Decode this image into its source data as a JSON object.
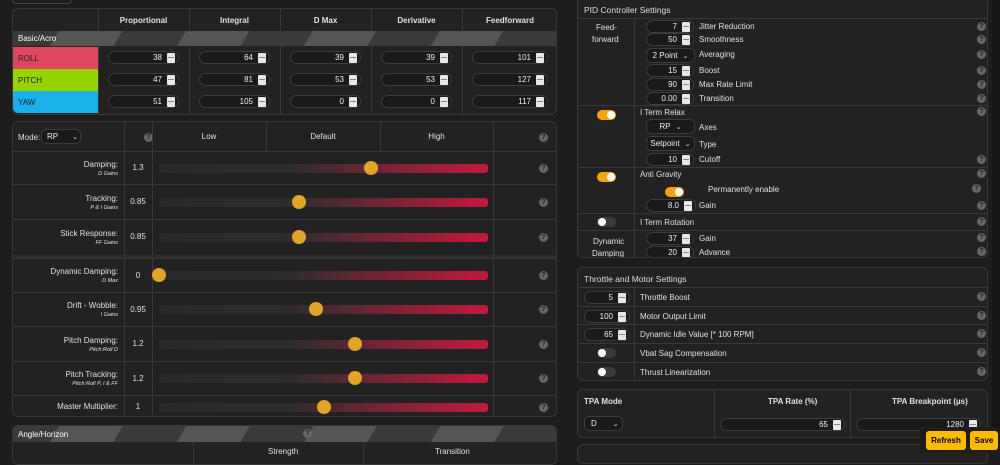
{
  "pid_table": {
    "columns": [
      "Proportional",
      "Integral",
      "D Max",
      "Derivative",
      "Feedforward"
    ],
    "section_label": "Basic/Acro",
    "rows": [
      {
        "axis": "ROLL",
        "color": "#e0465e",
        "values": [
          "38",
          "64",
          "39",
          "39",
          "101"
        ]
      },
      {
        "axis": "PITCH",
        "color": "#96d400",
        "values": [
          "47",
          "81",
          "53",
          "53",
          "127"
        ]
      },
      {
        "axis": "YAW",
        "color": "#1ab0ea",
        "values": [
          "51",
          "105",
          "0",
          "0",
          "117"
        ]
      }
    ]
  },
  "sliders": {
    "mode_label": "Mode:",
    "mode_value": "RP",
    "headers": [
      "Low",
      "Default",
      "High"
    ],
    "rows": [
      {
        "label": "Damping:",
        "sub": "D Gains",
        "value": "1.3",
        "position": 0.645
      },
      {
        "label": "Tracking:",
        "sub": "P & I Gains",
        "value": "0.85",
        "position": 0.427
      },
      {
        "label": "Stick Response:",
        "sub": "FF Gains",
        "value": "0.85",
        "position": 0.427
      },
      {
        "label": "Dynamic Damping:",
        "sub": "D Max",
        "value": "0",
        "position": 0.0
      },
      {
        "label": "Drift - Wobble:",
        "sub": "I Gains",
        "value": "0.95",
        "position": 0.476
      },
      {
        "label": "Pitch Damping:",
        "sub": "Pitch:Roll D",
        "value": "1.2",
        "position": 0.596
      },
      {
        "label": "Pitch Tracking:",
        "sub": "Pitch:Roll P, I & FF",
        "value": "1.2",
        "position": 0.596
      },
      {
        "label": "Master Multiplier:",
        "sub": "",
        "value": "1",
        "position": 0.5
      }
    ]
  },
  "angle_horizon": {
    "title": "Angle/Horizon",
    "columns": [
      "Strength",
      "Transition"
    ]
  },
  "pid_controller": {
    "title": "PID Controller Settings",
    "feedforward": {
      "label_1": "Feed-",
      "label_2": "forward",
      "jitter": {
        "value": "7",
        "label": "Jitter Reduction"
      },
      "smoothness": {
        "value": "50",
        "label": "Smoothness"
      },
      "averaging": {
        "value": "2 Point",
        "label": "Averaging"
      },
      "boost": {
        "value": "15",
        "label": "Boost"
      },
      "max_rate": {
        "value": "90",
        "label": "Max Rate Limit"
      },
      "transition": {
        "value": "0.00",
        "label": "Transition"
      }
    },
    "iterm_relax": {
      "label": "I Term Relax",
      "enabled": true,
      "axes": {
        "value": "RP",
        "label": "Axes"
      },
      "type": {
        "value": "Setpoint",
        "label": "Type"
      },
      "cutoff": {
        "value": "10",
        "label": "Cutoff"
      }
    },
    "anti_gravity": {
      "label": "Anti Gravity",
      "enabled": true,
      "permanent_label": "Permanently enable",
      "permanent": true,
      "gain": {
        "value": "8.0",
        "label": "Gain"
      }
    },
    "iterm_rotation": {
      "label": "I Term Rotation",
      "enabled": false
    },
    "dynamic_damping": {
      "label_1": "Dynamic",
      "label_2": "Damping",
      "gain": {
        "value": "37",
        "label": "Gain"
      },
      "advance": {
        "value": "20",
        "label": "Advance"
      }
    }
  },
  "throttle_motor": {
    "title": "Throttle and Motor Settings",
    "throttle_boost": {
      "value": "5",
      "label": "Throttle Boost"
    },
    "motor_output_limit": {
      "value": "100",
      "label": "Motor Output Limit"
    },
    "dynamic_idle": {
      "value": "65",
      "label": "Dynamic Idle Value [* 100 RPM]"
    },
    "vbat_sag": {
      "label": "Vbat Sag Compensation",
      "enabled": false
    },
    "thrust_lin": {
      "label": "Thrust Linearization",
      "enabled": false
    }
  },
  "tpa": {
    "mode_label": "TPA Mode",
    "mode_value": "D",
    "rate_label": "TPA Rate (%)",
    "rate_value": "65",
    "breakpoint_label": "TPA Breakpoint (µs)",
    "breakpoint_value": "1280"
  },
  "buttons": {
    "refresh": "Refresh",
    "save": "Save"
  }
}
